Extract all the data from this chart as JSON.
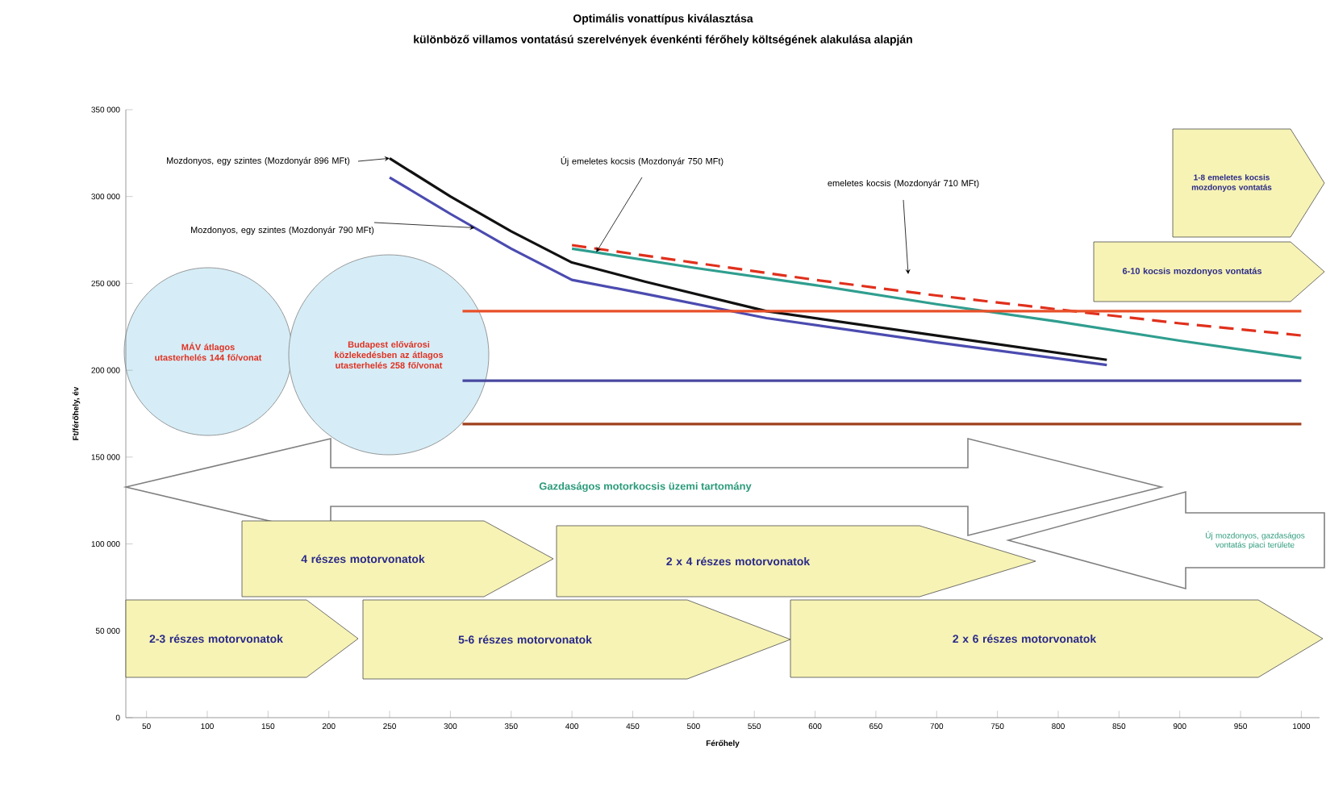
{
  "chart_data": {
    "type": "line",
    "title": "Optimális vonattípus kiválasztása",
    "subtitle": "különböző villamos vontatású szerelvények évenkénti férőhely költségének alakulása alapján",
    "xlabel": "Férőhely",
    "ylabel": "Ft/férőhely, év",
    "xlim": [
      33,
      1015
    ],
    "ylim": [
      0,
      350000
    ],
    "xticks": [
      50,
      100,
      150,
      200,
      250,
      300,
      350,
      400,
      450,
      500,
      550,
      600,
      650,
      700,
      750,
      800,
      850,
      900,
      950,
      1000
    ],
    "yticks": [
      0,
      {
        "value": 50000,
        "label": "50 000"
      },
      {
        "value": 100000,
        "label": "100 000"
      },
      {
        "value": 150000,
        "label": "150 000"
      },
      {
        "value": 200000,
        "label": "200 000"
      },
      {
        "value": 250000,
        "label": "250 000"
      },
      {
        "value": 300000,
        "label": "300 000"
      },
      {
        "value": 350000,
        "label": "350 000"
      }
    ],
    "marker": "none",
    "series": [
      {
        "color": "#111111",
        "x": [
          250,
          300,
          350,
          400,
          460,
          560,
          700,
          840
        ],
        "values": [
          322000,
          300000,
          280000,
          262000,
          251000,
          234000,
          220000,
          206000
        ]
      },
      {
        "color": "#4b4bb0",
        "x": [
          250,
          300,
          350,
          400,
          460,
          560,
          700,
          840
        ],
        "values": [
          311000,
          290000,
          270000,
          252000,
          244000,
          230000,
          216000,
          203000
        ]
      },
      {
        "color": "#2f9e8f",
        "x": [
          400,
          500,
          600,
          700,
          800,
          900,
          1000
        ],
        "values": [
          270000,
          259000,
          249000,
          238000,
          228000,
          217000,
          207000
        ]
      },
      {
        "color": "#e0301c",
        "line_style": "dashed",
        "x": [
          400,
          500,
          600,
          700,
          800,
          900,
          1000
        ],
        "values": [
          272000,
          262000,
          252000,
          243000,
          235000,
          227000,
          220000
        ]
      },
      {
        "color": "#e8502a",
        "x": [
          310,
          1000
        ],
        "values": [
          234000,
          234000
        ]
      },
      {
        "color": "#4848a0",
        "x": [
          310,
          1000
        ],
        "values": [
          194000,
          194000
        ]
      },
      {
        "color": "#a0401c",
        "x": [
          310,
          1000
        ],
        "values": [
          169000,
          169000
        ]
      }
    ],
    "annotations": [
      {
        "text": "Mozdonyos, egy szintes (Mozdonyár 896 MFt)",
        "x": 250,
        "y": 322000
      },
      {
        "text": "Mozdonyos, egy szintes (Mozdonyár 790 MFt)",
        "x": 320,
        "y": 282000
      },
      {
        "text": "Új emeletes kocsis (Mozdonyár 750 MFt)",
        "x": 420,
        "y": 268000
      },
      "emeletes kocsis (Mozdonyár 710 MFt)",
      "MÁV átlagos utasterhelés 144 fő/vonat",
      "Budapest elővárosi közlekedésben az átlagos utasterhelés 258 fő/vonat",
      "Gazdaságos motorkocsis üzemi tartomány",
      "Új mozdonyos, gazdaságos vontatás piaci területe",
      "2-3 részes motorvonatok",
      "4 részes motorvonatok",
      "2 x 4 részes motorvonatok",
      "5-6 részes motorvonatok",
      "2 x 6 részes motorvonatok",
      "1-8 emeletes kocsis mozdonyos vontatás",
      "6-10 kocsis mozdonyos vontatás"
    ]
  }
}
